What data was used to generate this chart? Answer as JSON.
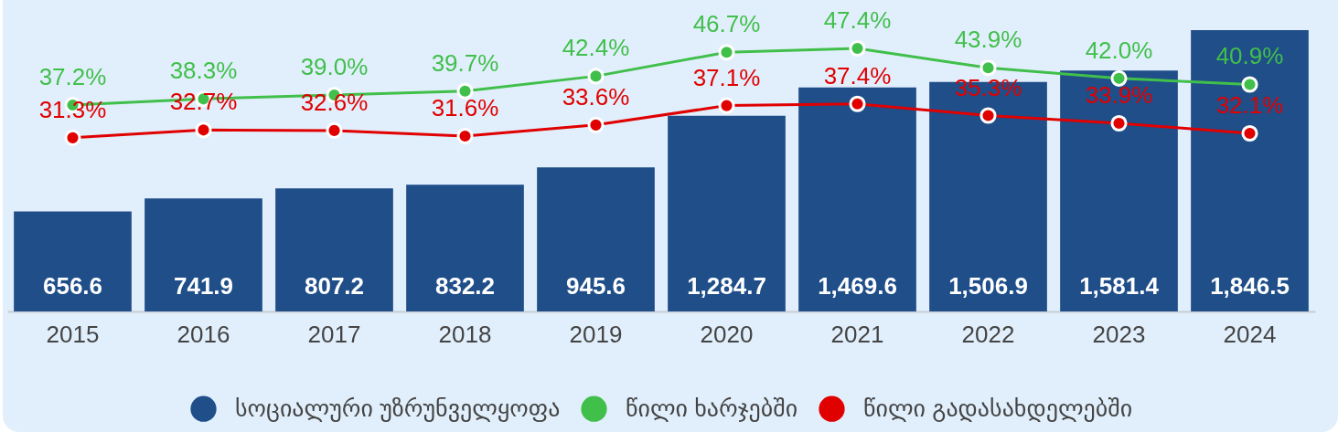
{
  "chart_data": {
    "type": "bar",
    "categories": [
      "2015",
      "2016",
      "2017",
      "2018",
      "2019",
      "2020",
      "2021",
      "2022",
      "2023",
      "2024"
    ],
    "series": [
      {
        "name": "სოციალური უზრუნველყოფა",
        "color": "#1f4e89",
        "values": [
          656.6,
          741.9,
          807.2,
          832.2,
          945.6,
          1284.7,
          1469.6,
          1506.9,
          1581.4,
          1846.5
        ],
        "value_labels": [
          "656.6",
          "741.9",
          "807.2",
          "832.2",
          "945.6",
          "1,284.7",
          "1,469.6",
          "1,506.9",
          "1,581.4",
          "1,846.5"
        ]
      },
      {
        "name": "წილი ხარჯებში",
        "type": "line",
        "axis": "y2",
        "color": "#41bf4b",
        "values": [
          37.2,
          38.3,
          39.0,
          39.7,
          42.4,
          46.7,
          47.4,
          43.9,
          42.0,
          40.9
        ],
        "value_labels": [
          "37.2%",
          "38.3%",
          "39.0%",
          "39.7%",
          "42.4%",
          "46.7%",
          "47.4%",
          "43.9%",
          "42.0%",
          "40.9%"
        ]
      },
      {
        "name": "წილი გადასახდელებში",
        "type": "line",
        "axis": "y2",
        "color": "#e00000",
        "values": [
          31.3,
          32.7,
          32.6,
          31.6,
          33.6,
          37.1,
          37.4,
          35.3,
          33.9,
          32.1
        ],
        "value_labels": [
          "31.3%",
          "32.7%",
          "32.6%",
          "31.6%",
          "33.6%",
          "37.1%",
          "37.4%",
          "35.3%",
          "33.9%",
          "32.1%"
        ]
      }
    ],
    "tick_labels": "x",
    "legend": "bottom",
    "marker": "circle",
    "line_style": "solid"
  }
}
